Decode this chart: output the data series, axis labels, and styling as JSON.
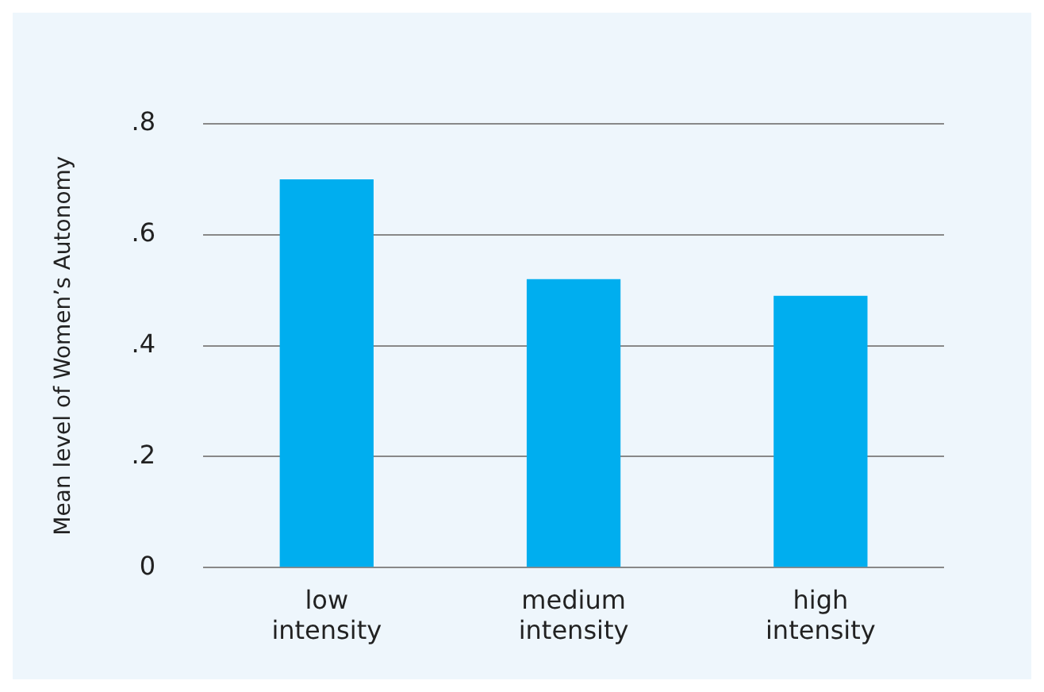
{
  "chart_data": {
    "type": "bar",
    "ylabel": "Mean level of Women’s Autonomy",
    "categories": [
      "low intensity",
      "medium intensity",
      "high intensity"
    ],
    "values": [
      0.7,
      0.52,
      0.49
    ],
    "color": "#00aeef",
    "ylim": [
      0,
      0.8
    ],
    "yticks": [
      0,
      {
        "value": 0.2,
        "label": ".2"
      },
      {
        "value": 0.4,
        "label": ".4"
      },
      {
        "value": 0.6,
        "label": ".6"
      },
      {
        "value": 0.8,
        "label": ".8"
      }
    ],
    "grid": "y",
    "legend": false
  }
}
